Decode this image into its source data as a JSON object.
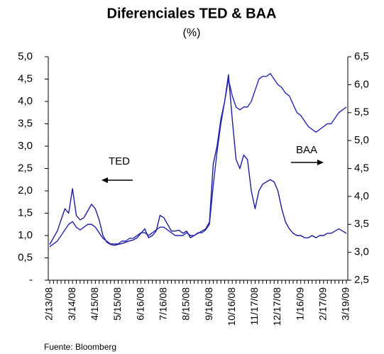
{
  "chart_data": {
    "type": "line",
    "title": "Diferenciales TED & BAA",
    "subtitle": "(%)",
    "source": "Fuente: Bloomberg",
    "annotations": [
      {
        "text": "TED"
      },
      {
        "text": "BAA"
      }
    ],
    "categories": [
      "2/13/08",
      null,
      null,
      null,
      null,
      null,
      "3/14/08",
      null,
      null,
      null,
      null,
      null,
      "4/15/08",
      null,
      null,
      null,
      null,
      null,
      "5/15/08",
      null,
      null,
      null,
      null,
      null,
      "6/16/08",
      null,
      null,
      null,
      null,
      null,
      "7/16/08",
      null,
      null,
      null,
      null,
      null,
      "8/15/08",
      null,
      null,
      null,
      null,
      null,
      "9/16/08",
      null,
      null,
      null,
      null,
      null,
      "10/16/08",
      null,
      null,
      null,
      null,
      null,
      "11/17/08",
      null,
      null,
      null,
      null,
      null,
      "12/17/08",
      null,
      null,
      null,
      null,
      null,
      "1/16/09",
      null,
      null,
      null,
      null,
      null,
      "2/17/09",
      null,
      null,
      null,
      null,
      null,
      "3/19/09"
    ],
    "series": [
      {
        "name": "TED",
        "color": "#1c1c9e",
        "axis": "y",
        "values": [
          0.8,
          0.95,
          1.1,
          1.35,
          1.6,
          1.5,
          2.05,
          1.45,
          1.35,
          1.4,
          1.55,
          1.7,
          1.6,
          1.35,
          1.0,
          0.85,
          0.8,
          0.78,
          0.8,
          0.82,
          0.85,
          0.88,
          0.9,
          0.95,
          1.05,
          1.15,
          0.95,
          1.0,
          1.1,
          1.45,
          1.4,
          1.25,
          1.1,
          1.1,
          1.12,
          1.05,
          1.1,
          0.95,
          1.0,
          1.05,
          1.1,
          1.15,
          1.3,
          2.6,
          3.0,
          3.6,
          4.0,
          4.6,
          3.6,
          2.7,
          2.5,
          2.8,
          2.7,
          2.0,
          1.6,
          2.0,
          2.15,
          2.2,
          2.25,
          2.2,
          2.0,
          1.6,
          1.3,
          1.15,
          1.05,
          1.0,
          1.0,
          0.95,
          0.95,
          1.0,
          0.95,
          1.0,
          1.0,
          1.05,
          1.05,
          1.1,
          1.15,
          1.1,
          1.05
        ]
      },
      {
        "name": "BAA",
        "color": "#2626b4",
        "axis": "y2",
        "values": [
          3.1,
          3.15,
          3.2,
          3.3,
          3.4,
          3.5,
          3.55,
          3.45,
          3.4,
          3.45,
          3.5,
          3.5,
          3.45,
          3.35,
          3.25,
          3.2,
          3.15,
          3.15,
          3.15,
          3.2,
          3.2,
          3.25,
          3.25,
          3.3,
          3.35,
          3.35,
          3.3,
          3.35,
          3.4,
          3.45,
          3.45,
          3.4,
          3.35,
          3.3,
          3.3,
          3.3,
          3.35,
          3.3,
          3.3,
          3.35,
          3.35,
          3.4,
          3.5,
          4.2,
          4.8,
          5.3,
          5.7,
          6.1,
          5.8,
          5.6,
          5.55,
          5.6,
          5.6,
          5.7,
          5.9,
          6.1,
          6.15,
          6.15,
          6.2,
          6.1,
          6.0,
          5.95,
          5.85,
          5.8,
          5.65,
          5.5,
          5.45,
          5.35,
          5.25,
          5.2,
          5.15,
          5.2,
          5.25,
          5.3,
          5.3,
          5.4,
          5.5,
          5.55,
          5.6
        ]
      }
    ],
    "ylim": [
      0,
      5
    ],
    "yticks": [
      {
        "value": 0,
        "label": "-"
      },
      {
        "value": 0.5,
        "label": "0,5"
      },
      {
        "value": 1,
        "label": "1,0"
      },
      {
        "value": 1.5,
        "label": "1,5"
      },
      {
        "value": 2,
        "label": "2,0"
      },
      {
        "value": 2.5,
        "label": "2,5"
      },
      {
        "value": 3,
        "label": "3,0"
      },
      {
        "value": 3.5,
        "label": "3,5"
      },
      {
        "value": 4,
        "label": "4,0"
      },
      {
        "value": 4.5,
        "label": "4,5"
      },
      {
        "value": 5,
        "label": "5,0"
      }
    ],
    "y2lim": [
      2.5,
      6.5
    ],
    "y2ticks": [
      {
        "value": 2.5,
        "label": "2,5"
      },
      {
        "value": 3,
        "label": "3,0"
      },
      {
        "value": 3.5,
        "label": "3,5"
      },
      {
        "value": 4,
        "label": "4,0"
      },
      {
        "value": 4.5,
        "label": "4,5"
      },
      {
        "value": 5,
        "label": "5,0"
      },
      {
        "value": 5.5,
        "label": "5,5"
      },
      {
        "value": 6,
        "label": "6,0"
      },
      {
        "value": 6.5,
        "label": "6,5"
      }
    ],
    "grid": false
  }
}
